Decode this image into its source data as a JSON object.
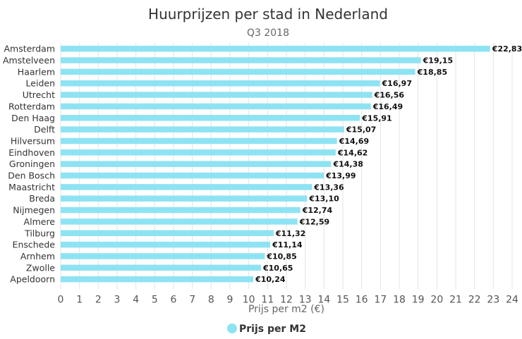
{
  "chart_data": {
    "type": "bar",
    "orientation": "horizontal",
    "title": "Huurprijzen per stad in Nederland",
    "subtitle": "Q3 2018",
    "xlabel": "Prijs per m2 (€)",
    "ylabel": "",
    "xlim": [
      0,
      24
    ],
    "ticks": [
      "0",
      "1",
      "2",
      "3",
      "4",
      "5",
      "6",
      "7",
      "8",
      "9",
      "10",
      "11",
      "12",
      "13",
      "14",
      "15",
      "16",
      "17",
      "18",
      "19",
      "20",
      "21",
      "22",
      "23",
      "24"
    ],
    "grid": true,
    "legend_position": "bottom-center",
    "bar_color": "#8ee3f3",
    "series": [
      {
        "name": "Prijs per M2",
        "categories": [
          "Amsterdam",
          "Amstelveen",
          "Haarlem",
          "Leiden",
          "Utrecht",
          "Rotterdam",
          "Den Haag",
          "Delft",
          "Hilversum",
          "Eindhoven",
          "Groningen",
          "Den Bosch",
          "Maastricht",
          "Breda",
          "Nijmegen",
          "Almere",
          "Tilburg",
          "Enschede",
          "Arnhem",
          "Zwolle",
          "Apeldoorn"
        ],
        "values": [
          22.83,
          19.15,
          18.85,
          16.97,
          16.56,
          16.49,
          15.91,
          15.07,
          14.69,
          14.62,
          14.38,
          13.99,
          13.36,
          13.1,
          12.74,
          12.59,
          11.32,
          11.14,
          10.85,
          10.65,
          10.24
        ],
        "labels": [
          "€22,83",
          "€19,15",
          "€18,85",
          "€16,97",
          "€16,56",
          "€16,49",
          "€15,91",
          "€15,07",
          "€14,69",
          "€14,62",
          "€14,38",
          "€13,99",
          "€13,36",
          "€13,10",
          "€12,74",
          "€12,59",
          "€11,32",
          "€11,14",
          "€10,85",
          "€10,65",
          "€10,24"
        ]
      }
    ]
  }
}
